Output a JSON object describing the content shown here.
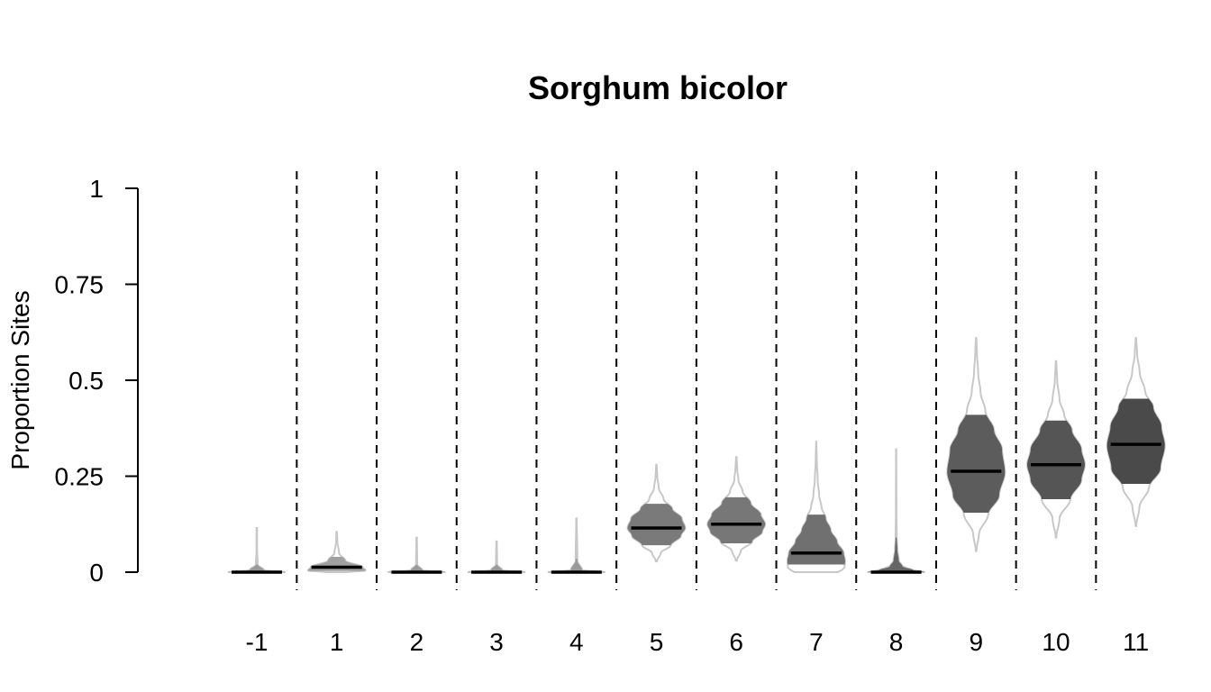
{
  "chart_data": {
    "type": "violin",
    "title": "Sorghum bicolor",
    "xlabel": "",
    "ylabel": "Proportion Sites",
    "ylim": [
      0,
      1
    ],
    "y_ticks": [
      0,
      0.25,
      0.5,
      0.75,
      1
    ],
    "y_tick_labels": [
      "0",
      "0.25",
      "0.5",
      "0.75",
      "1"
    ],
    "separators": "dashed vertical lines between categories",
    "categories": [
      "-1",
      "1",
      "2",
      "3",
      "4",
      "5",
      "6",
      "7",
      "8",
      "9",
      "10",
      "11"
    ],
    "distributions": [
      {
        "category": "-1",
        "min": 0.0,
        "q1": 0.0,
        "median": 0.0,
        "q3": 0.02,
        "max": 0.115,
        "fill": "#9a9a9a",
        "profile": [
          [
            0,
            1
          ],
          [
            0.005,
            0.25
          ],
          [
            0.02,
            0.03
          ],
          [
            0.06,
            0.01
          ],
          [
            0.115,
            0.01
          ]
        ]
      },
      {
        "category": "1",
        "min": 0.0,
        "q1": 0.003,
        "median": 0.013,
        "q3": 0.04,
        "max": 0.105,
        "fill": "#a0a0a0",
        "profile": [
          [
            0,
            0.35
          ],
          [
            0.004,
            1
          ],
          [
            0.013,
            0.9
          ],
          [
            0.03,
            0.3
          ],
          [
            0.05,
            0.08
          ],
          [
            0.08,
            0.02
          ],
          [
            0.105,
            0.01
          ]
        ]
      },
      {
        "category": "2",
        "min": 0.0,
        "q1": 0.0,
        "median": 0.0,
        "q3": 0.02,
        "max": 0.09,
        "fill": "#9a9a9a",
        "profile": [
          [
            0,
            1
          ],
          [
            0.005,
            0.2
          ],
          [
            0.02,
            0.02
          ],
          [
            0.09,
            0.01
          ]
        ]
      },
      {
        "category": "3",
        "min": 0.0,
        "q1": 0.0,
        "median": 0.0,
        "q3": 0.02,
        "max": 0.08,
        "fill": "#9a9a9a",
        "profile": [
          [
            0,
            1
          ],
          [
            0.005,
            0.2
          ],
          [
            0.02,
            0.02
          ],
          [
            0.08,
            0.01
          ]
        ]
      },
      {
        "category": "4",
        "min": 0.0,
        "q1": 0.0,
        "median": 0.0,
        "q3": 0.035,
        "max": 0.14,
        "fill": "#9a9a9a",
        "profile": [
          [
            0,
            1
          ],
          [
            0.005,
            0.2
          ],
          [
            0.03,
            0.03
          ],
          [
            0.14,
            0.01
          ]
        ]
      },
      {
        "category": "5",
        "min": 0.028,
        "q1": 0.07,
        "median": 0.115,
        "q3": 0.178,
        "max": 0.28,
        "fill": "#7a7a7a",
        "profile": [
          [
            0.028,
            0.02
          ],
          [
            0.05,
            0.15
          ],
          [
            0.07,
            0.5
          ],
          [
            0.095,
            0.85
          ],
          [
            0.115,
            1
          ],
          [
            0.14,
            0.88
          ],
          [
            0.165,
            0.55
          ],
          [
            0.19,
            0.25
          ],
          [
            0.22,
            0.08
          ],
          [
            0.25,
            0.03
          ],
          [
            0.28,
            0.01
          ]
        ]
      },
      {
        "category": "6",
        "min": 0.03,
        "q1": 0.075,
        "median": 0.125,
        "q3": 0.195,
        "max": 0.3,
        "fill": "#777777",
        "profile": [
          [
            0.03,
            0.02
          ],
          [
            0.055,
            0.15
          ],
          [
            0.08,
            0.55
          ],
          [
            0.105,
            0.9
          ],
          [
            0.125,
            1
          ],
          [
            0.15,
            0.85
          ],
          [
            0.18,
            0.5
          ],
          [
            0.21,
            0.22
          ],
          [
            0.24,
            0.07
          ],
          [
            0.27,
            0.03
          ],
          [
            0.3,
            0.01
          ]
        ]
      },
      {
        "category": "7",
        "min": 0.0,
        "q1": 0.02,
        "median": 0.05,
        "q3": 0.15,
        "max": 0.34,
        "fill": "#707070",
        "profile": [
          [
            0,
            0.75
          ],
          [
            0.01,
            0.98
          ],
          [
            0.03,
            1
          ],
          [
            0.05,
            0.95
          ],
          [
            0.08,
            0.72
          ],
          [
            0.11,
            0.5
          ],
          [
            0.14,
            0.33
          ],
          [
            0.17,
            0.18
          ],
          [
            0.2,
            0.1
          ],
          [
            0.24,
            0.05
          ],
          [
            0.29,
            0.02
          ],
          [
            0.34,
            0.005
          ]
        ]
      },
      {
        "category": "8",
        "min": 0.0,
        "q1": 0.0,
        "median": 0.0,
        "q3": 0.09,
        "max": 0.32,
        "fill": "#666666",
        "profile": [
          [
            0,
            1
          ],
          [
            0.005,
            0.6
          ],
          [
            0.015,
            0.22
          ],
          [
            0.03,
            0.09
          ],
          [
            0.06,
            0.04
          ],
          [
            0.09,
            0.02
          ],
          [
            0.15,
            0.01
          ],
          [
            0.32,
            0.005
          ]
        ]
      },
      {
        "category": "9",
        "min": 0.055,
        "q1": 0.155,
        "median": 0.263,
        "q3": 0.41,
        "max": 0.61,
        "fill": "#5c5c5c",
        "profile": [
          [
            0.055,
            0.01
          ],
          [
            0.1,
            0.1
          ],
          [
            0.15,
            0.42
          ],
          [
            0.2,
            0.8
          ],
          [
            0.26,
            1
          ],
          [
            0.32,
            0.9
          ],
          [
            0.37,
            0.62
          ],
          [
            0.42,
            0.32
          ],
          [
            0.47,
            0.15
          ],
          [
            0.52,
            0.07
          ],
          [
            0.57,
            0.03
          ],
          [
            0.61,
            0.01
          ]
        ]
      },
      {
        "category": "10",
        "min": 0.09,
        "q1": 0.19,
        "median": 0.28,
        "q3": 0.395,
        "max": 0.55,
        "fill": "#555555",
        "profile": [
          [
            0.09,
            0.01
          ],
          [
            0.14,
            0.12
          ],
          [
            0.19,
            0.5
          ],
          [
            0.24,
            0.88
          ],
          [
            0.28,
            1
          ],
          [
            0.32,
            0.88
          ],
          [
            0.37,
            0.55
          ],
          [
            0.41,
            0.28
          ],
          [
            0.45,
            0.12
          ],
          [
            0.5,
            0.04
          ],
          [
            0.55,
            0.01
          ]
        ]
      },
      {
        "category": "11",
        "min": 0.12,
        "q1": 0.23,
        "median": 0.333,
        "q3": 0.452,
        "max": 0.61,
        "fill": "#4a4a4a",
        "profile": [
          [
            0.12,
            0.01
          ],
          [
            0.17,
            0.12
          ],
          [
            0.22,
            0.45
          ],
          [
            0.27,
            0.85
          ],
          [
            0.33,
            1
          ],
          [
            0.38,
            0.88
          ],
          [
            0.43,
            0.6
          ],
          [
            0.47,
            0.32
          ],
          [
            0.52,
            0.13
          ],
          [
            0.57,
            0.04
          ],
          [
            0.61,
            0.01
          ]
        ]
      }
    ]
  },
  "colors": {
    "outline": "#c8c8c8",
    "median_line": "#000000",
    "axis": "#000000"
  }
}
